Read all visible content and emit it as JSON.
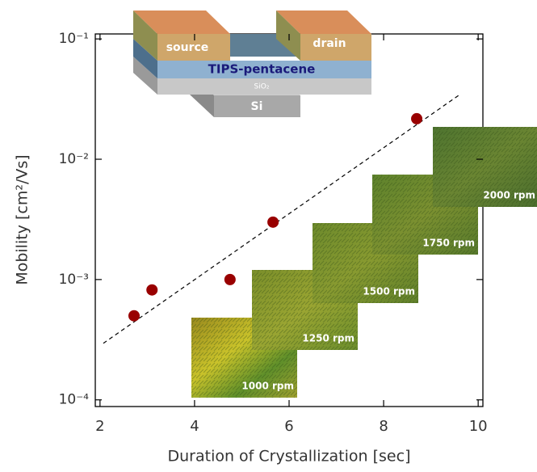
{
  "chart_data": {
    "type": "scatter",
    "xlabel": "Duration of Crystallization [sec]",
    "ylabel": "Mobility [cm²/Vs]",
    "x": [
      2.72,
      3.1,
      4.75,
      5.66,
      8.7
    ],
    "values": [
      0.0005,
      0.00082,
      0.001,
      0.003,
      0.0217
    ],
    "color": "#990000",
    "fit": {
      "x": [
        2.07,
        9.59
      ],
      "values": [
        0.000295,
        0.034
      ]
    },
    "xlim": [
      1.9,
      10.1
    ],
    "xticks": [
      2,
      4,
      6,
      8,
      10
    ],
    "ylim": [
      8.8e-05,
      0.11
    ],
    "ylog": true,
    "yticks": [
      {
        "value": 0.1,
        "label": "10⁻¹"
      },
      {
        "value": 0.01,
        "label": "10⁻²"
      },
      {
        "value": 0.001,
        "label": "10⁻³"
      },
      {
        "value": 0.0001,
        "label": "10⁻⁴"
      }
    ],
    "grid": false,
    "insets": [
      "1000 rpm",
      "1250 rpm",
      "1500 rpm",
      "1750 rpm",
      "2000 rpm"
    ],
    "device": {
      "source": "source",
      "drain": "drain",
      "semiconductor": "TIPS-pentacene",
      "dielectric": "SiO₂",
      "gate": "Si"
    }
  }
}
